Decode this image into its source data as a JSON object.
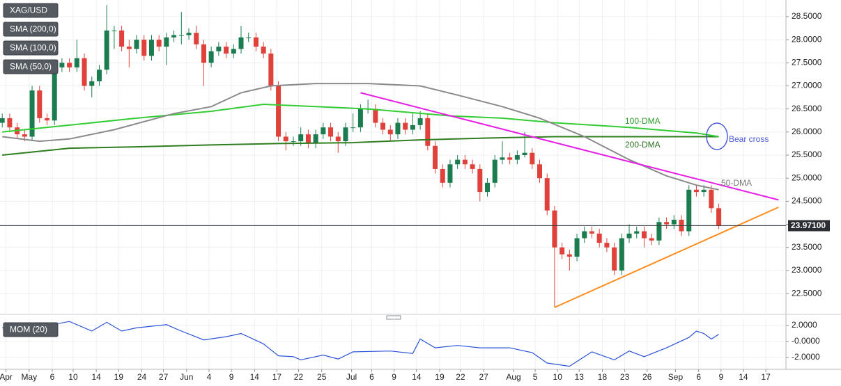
{
  "chart_data": [
    {
      "type": "candlestick",
      "title": "XAG/USD",
      "up_color": "#1b7d4f",
      "down_color": "#e0413a",
      "open": [
        26.2,
        26.3,
        26.1,
        25.95,
        25.9,
        26.9,
        26.3,
        26.25,
        27.4,
        27.5,
        27.4,
        27.6,
        27.0,
        27.1,
        27.35,
        28.2,
        28.2,
        27.85,
        27.8,
        28.0,
        27.65,
        28.0,
        27.85,
        28.05,
        28.1,
        28.1,
        28.15,
        27.9,
        27.5,
        27.75,
        27.85,
        27.7,
        27.8,
        28.05,
        28.05,
        27.85,
        27.7,
        27.0,
        25.9,
        25.8,
        25.8,
        25.95,
        25.75,
        25.95,
        26.1,
        25.9,
        25.8,
        26.1,
        26.1,
        26.5,
        26.5,
        26.2,
        26.05,
        25.95,
        26.2,
        26.05,
        26.15,
        26.3,
        25.7,
        25.2,
        24.9,
        25.3,
        25.4,
        25.3,
        25.2,
        24.7,
        24.9,
        25.4,
        25.45,
        25.4,
        25.5,
        25.55,
        25.3,
        25.0,
        24.3,
        23.5,
        23.35,
        23.3,
        23.7,
        23.85,
        23.8,
        23.6,
        23.5,
        23.0,
        23.7,
        23.8,
        23.85,
        23.7,
        23.65,
        24.05,
        24.0,
        24.1,
        23.85,
        24.75,
        24.7,
        24.75,
        24.35
      ],
      "high": [
        26.4,
        26.4,
        26.2,
        26.05,
        27.0,
        27.0,
        26.4,
        27.5,
        27.6,
        27.6,
        28.0,
        27.7,
        27.2,
        27.45,
        28.75,
        28.3,
        28.3,
        28.0,
        28.1,
        28.1,
        28.1,
        28.1,
        28.15,
        28.2,
        28.6,
        28.25,
        28.3,
        28.0,
        27.85,
        27.95,
        27.95,
        27.9,
        28.3,
        28.15,
        28.15,
        27.95,
        27.8,
        27.1,
        26.0,
        25.9,
        26.1,
        26.05,
        26.05,
        26.2,
        26.2,
        26.0,
        26.2,
        26.4,
        26.6,
        26.7,
        26.6,
        26.3,
        26.15,
        26.3,
        26.3,
        26.4,
        26.45,
        26.4,
        25.8,
        25.3,
        25.4,
        25.5,
        25.5,
        25.4,
        25.3,
        25.0,
        25.5,
        25.8,
        25.55,
        25.6,
        26.0,
        25.65,
        25.4,
        25.1,
        24.4,
        23.6,
        23.45,
        23.8,
        23.95,
        23.95,
        23.9,
        23.7,
        23.6,
        23.8,
        24.0,
        23.95,
        23.95,
        23.8,
        24.15,
        24.15,
        24.2,
        24.2,
        24.85,
        24.85,
        24.85,
        24.85,
        24.45
      ],
      "low": [
        26.1,
        26.0,
        25.85,
        25.8,
        25.8,
        26.2,
        26.15,
        26.15,
        27.3,
        27.3,
        27.3,
        26.9,
        26.75,
        27.0,
        27.25,
        27.8,
        27.75,
        27.4,
        27.7,
        27.55,
        27.55,
        27.75,
        27.45,
        27.95,
        27.9,
        28.0,
        27.8,
        27.0,
        27.4,
        27.65,
        27.6,
        27.6,
        27.7,
        27.95,
        27.75,
        27.6,
        26.9,
        25.8,
        25.6,
        25.7,
        25.7,
        25.65,
        25.65,
        25.85,
        25.8,
        25.55,
        25.7,
        26.0,
        26.0,
        26.4,
        26.1,
        25.95,
        25.8,
        25.85,
        25.95,
        25.95,
        26.05,
        25.6,
        25.1,
        24.8,
        24.8,
        25.2,
        25.2,
        25.1,
        24.5,
        24.6,
        24.8,
        25.3,
        25.3,
        25.3,
        25.45,
        25.2,
        24.9,
        24.2,
        22.2,
        23.25,
        23.0,
        23.2,
        23.6,
        23.7,
        23.5,
        23.4,
        22.9,
        22.9,
        23.6,
        23.7,
        23.5,
        23.55,
        23.55,
        23.9,
        23.9,
        23.75,
        23.75,
        24.6,
        24.6,
        24.25,
        23.9
      ],
      "close": [
        26.3,
        26.1,
        25.95,
        25.9,
        26.9,
        26.3,
        26.25,
        27.4,
        27.5,
        27.4,
        27.6,
        27.0,
        27.1,
        27.35,
        28.2,
        28.2,
        27.85,
        27.8,
        28.0,
        27.65,
        28.0,
        27.85,
        28.05,
        28.1,
        28.1,
        28.15,
        27.9,
        27.5,
        27.75,
        27.85,
        27.7,
        27.8,
        28.05,
        28.05,
        27.85,
        27.7,
        27.0,
        25.9,
        25.8,
        25.8,
        25.95,
        25.75,
        25.95,
        26.1,
        25.9,
        25.8,
        26.1,
        26.1,
        26.5,
        26.5,
        26.2,
        26.05,
        25.95,
        26.2,
        26.05,
        26.15,
        26.3,
        25.7,
        25.2,
        24.9,
        25.3,
        25.4,
        25.3,
        25.2,
        24.7,
        24.9,
        25.4,
        25.45,
        25.4,
        25.5,
        25.55,
        25.3,
        25.0,
        24.3,
        23.5,
        23.35,
        23.3,
        23.7,
        23.85,
        23.8,
        23.6,
        23.5,
        23.0,
        23.7,
        23.8,
        23.85,
        23.7,
        23.65,
        24.05,
        24.0,
        24.1,
        23.85,
        24.75,
        24.7,
        24.75,
        24.35,
        23.971
      ],
      "lines": [
        {
          "name": "SMA (200,0)",
          "color": "#2e7d1f",
          "x": [
            0,
            9,
            18,
            28,
            37,
            47,
            56,
            65,
            74,
            84,
            96
          ],
          "values": [
            25.5,
            25.65,
            25.68,
            25.72,
            25.75,
            25.77,
            25.83,
            25.87,
            25.9,
            25.9,
            25.9
          ]
        },
        {
          "name": "SMA (100,0)",
          "color": "#33cc33",
          "x": [
            0,
            9,
            18,
            28,
            35,
            42,
            49,
            60,
            67,
            74,
            84,
            93,
            96
          ],
          "values": [
            26.0,
            26.15,
            26.3,
            26.45,
            26.6,
            26.55,
            26.5,
            26.35,
            26.3,
            26.2,
            26.1,
            25.98,
            25.9
          ]
        },
        {
          "name": "SMA (50,0)",
          "color": "#8a8a8a",
          "x": [
            0,
            5,
            9,
            15,
            23,
            28,
            32,
            36,
            42,
            49,
            56,
            61,
            67,
            72,
            78,
            84,
            89,
            93,
            96
          ],
          "values": [
            25.9,
            25.8,
            25.85,
            26.05,
            26.4,
            26.55,
            26.85,
            27.0,
            27.05,
            27.05,
            27.0,
            26.8,
            26.55,
            26.3,
            25.9,
            25.4,
            25.05,
            24.85,
            24.75
          ]
        }
      ],
      "trendlines": [
        {
          "color": "#e61ee6",
          "x": [
            48,
            104
          ],
          "values": [
            26.85,
            24.53
          ]
        },
        {
          "color": "#ff8c1a",
          "x": [
            74,
            104
          ],
          "values": [
            22.2,
            24.37
          ]
        }
      ],
      "last_price": {
        "value": 23.971,
        "label": "23.97100"
      },
      "annotations": [
        "100-DMA",
        "200-DMA",
        "50-DMA",
        "Bear cross"
      ],
      "xlim": [
        -0.3,
        105
      ],
      "xticks": [
        {
          "value": 0.5,
          "label": "Apr"
        },
        {
          "value": 3.6,
          "label": "May"
        },
        {
          "value": 6.7,
          "label": "6"
        },
        {
          "value": 9.5,
          "label": "10"
        },
        {
          "value": 12.6,
          "label": "14"
        },
        {
          "value": 15.6,
          "label": "19"
        },
        {
          "value": 18.7,
          "label": "24"
        },
        {
          "value": 21.6,
          "label": "27"
        },
        {
          "value": 24.7,
          "label": "Jun"
        },
        {
          "value": 27.7,
          "label": "4"
        },
        {
          "value": 30.7,
          "label": "9"
        },
        {
          "value": 33.8,
          "label": "14"
        },
        {
          "value": 36.8,
          "label": "17"
        },
        {
          "value": 39.7,
          "label": "22"
        },
        {
          "value": 42.8,
          "label": "25"
        },
        {
          "value": 46.8,
          "label": "Jul"
        },
        {
          "value": 49.5,
          "label": "6"
        },
        {
          "value": 52.5,
          "label": "9"
        },
        {
          "value": 55.5,
          "label": "14"
        },
        {
          "value": 58.6,
          "label": "19"
        },
        {
          "value": 61.4,
          "label": "22"
        },
        {
          "value": 64.5,
          "label": "27"
        },
        {
          "value": 68.5,
          "label": "Aug"
        },
        {
          "value": 71.4,
          "label": "5"
        },
        {
          "value": 74.4,
          "label": "10"
        },
        {
          "value": 77.3,
          "label": "13"
        },
        {
          "value": 80.4,
          "label": "18"
        },
        {
          "value": 83.4,
          "label": "23"
        },
        {
          "value": 86.4,
          "label": "26"
        },
        {
          "value": 90.2,
          "label": "Sep"
        },
        {
          "value": 93.3,
          "label": "6"
        },
        {
          "value": 96.3,
          "label": "9"
        },
        {
          "value": 99.3,
          "label": "14"
        },
        {
          "value": 102.3,
          "label": "17"
        }
      ],
      "ylim": [
        22.08,
        28.86
      ],
      "yticks": [
        {
          "value": 22.5,
          "label": "22.5000"
        },
        {
          "value": 23,
          "label": "23.0000"
        },
        {
          "value": 23.5,
          "label": "23.5000"
        },
        {
          "value": 24,
          "label": "24.0000"
        },
        {
          "value": 24.5,
          "label": "24.5000"
        },
        {
          "value": 25,
          "label": "25.0000"
        },
        {
          "value": 25.5,
          "label": "25.5000"
        },
        {
          "value": 26,
          "label": "26.0000"
        },
        {
          "value": 26.5,
          "label": "26.5000"
        },
        {
          "value": 27,
          "label": "27.0000"
        },
        {
          "value": 27.5,
          "label": "27.5000"
        },
        {
          "value": 28,
          "label": "28.0000"
        },
        {
          "value": 28.5,
          "label": "28.5000"
        }
      ],
      "grid": true
    },
    {
      "type": "line",
      "xlim": [
        -0.3,
        105
      ],
      "series": [
        {
          "name": "MOM (20)",
          "color": "#2a52d6",
          "x": [
            0,
            3,
            5,
            9,
            12,
            14,
            16,
            18,
            22,
            24,
            27,
            30,
            32,
            35,
            37,
            39,
            40,
            43,
            45,
            47,
            52,
            55,
            56,
            58,
            61,
            64,
            68,
            71,
            73,
            76,
            79,
            82,
            84,
            86,
            89,
            92,
            93,
            94,
            95,
            96
          ],
          "values": [
            1.7,
            1.4,
            1.8,
            2.5,
            1.3,
            2.4,
            1.3,
            1.7,
            2.1,
            1.3,
            0.2,
            0.6,
            1.0,
            -0.3,
            -1.8,
            -1.9,
            -2.3,
            -1.7,
            -2.2,
            -1.3,
            -1.2,
            -1.5,
            0.3,
            -0.8,
            -0.5,
            -0.8,
            -0.8,
            -1.4,
            -2.7,
            -3.1,
            -1.3,
            -2.3,
            -1.2,
            -1.9,
            -0.8,
            0.5,
            1.3,
            1.0,
            0.3,
            0.9
          ]
        }
      ],
      "ylim": [
        -3.4,
        2.87
      ],
      "yticks": [
        {
          "value": 2,
          "label": "2.0000"
        },
        {
          "value": 0,
          "label": "-0.0000"
        },
        {
          "value": -2,
          "label": "-2.0000"
        }
      ],
      "grid": true
    }
  ]
}
